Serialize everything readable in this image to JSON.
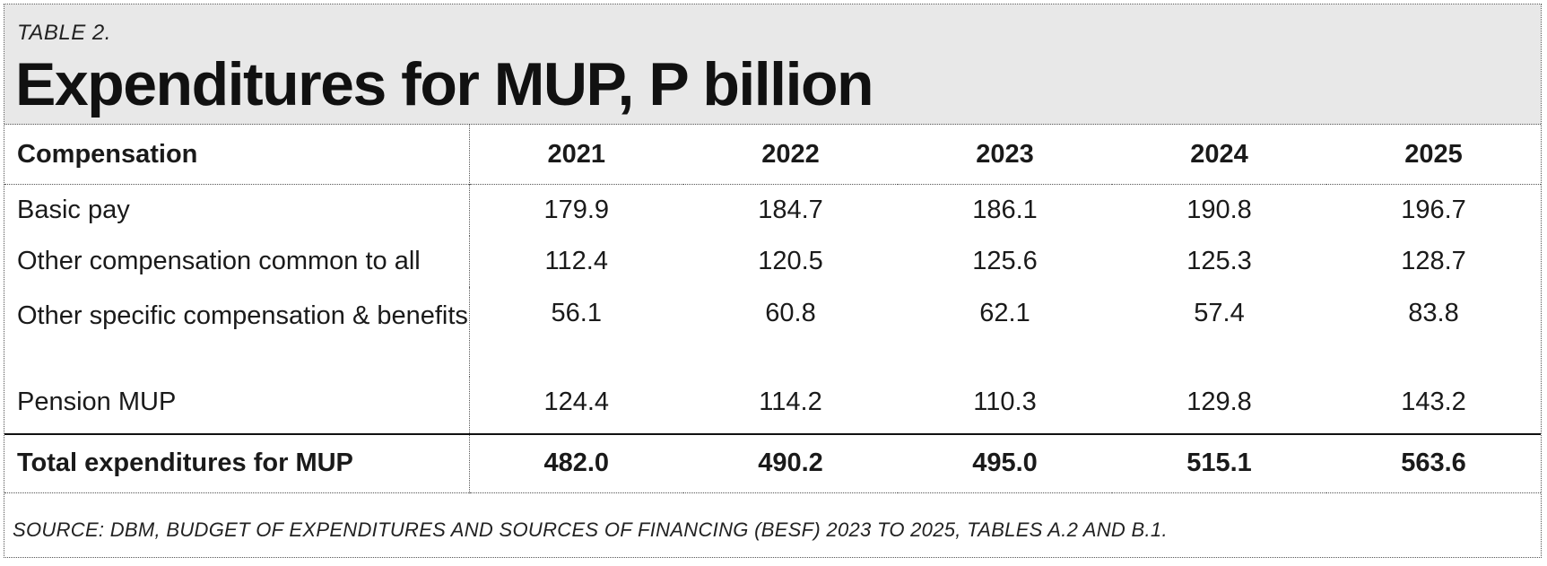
{
  "table_label": "TABLE 2.",
  "title": "Expenditures for MUP, P billion",
  "source": "SOURCE: DBM, BUDGET OF EXPENDITURES AND SOURCES OF FINANCING (BESF) 2023 TO 2025, TABLES A.2 AND B.1.",
  "chart_data": {
    "type": "table",
    "title": "Expenditures for MUP, P billion",
    "columns": [
      "Compensation",
      "2021",
      "2022",
      "2023",
      "2024",
      "2025"
    ],
    "rows": [
      {
        "label": "Basic pay",
        "values": [
          "179.9",
          "184.7",
          "186.1",
          "190.8",
          "196.7"
        ]
      },
      {
        "label": "Other compensation common to all",
        "values": [
          "112.4",
          "120.5",
          "125.6",
          "125.3",
          "128.7"
        ]
      },
      {
        "label": "Other specific compensation & benefits",
        "values": [
          "56.1",
          "60.8",
          "62.1",
          "57.4",
          "83.8"
        ]
      },
      {
        "label": "Pension MUP",
        "values": [
          "124.4",
          "114.2",
          "110.3",
          "129.8",
          "143.2"
        ]
      }
    ],
    "total": {
      "label": "Total expenditures for MUP",
      "values": [
        "482.0",
        "490.2",
        "495.0",
        "515.1",
        "563.6"
      ]
    }
  }
}
